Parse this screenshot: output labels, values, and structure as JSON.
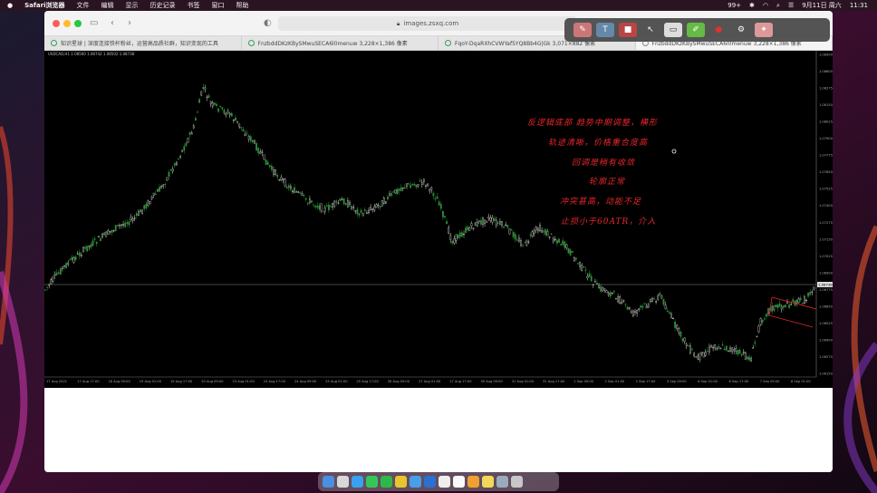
{
  "menubar": {
    "apple": "",
    "items": [
      "Safari浏览器",
      "文件",
      "编辑",
      "显示",
      "历史记录",
      "书签",
      "窗口",
      "帮助"
    ],
    "status": {
      "battery": "99+",
      "date": "9月11日 周六",
      "time": "11:31"
    }
  },
  "browser": {
    "address": "images.zsxq.com",
    "tabs": [
      {
        "title": "知识星球 | 深度连接铁杆粉丝，运营高品质社群，知识变现的工具",
        "active": false
      },
      {
        "title": "FnzbddDKzKBySMwuSECA6l0menuw 3,228×1,386 像素",
        "active": false
      },
      {
        "title": "FqoY-DqaRXhCVWYaf5YQ8Bb4G|Gk 3,071×882 像素",
        "active": false
      },
      {
        "title": "FnzbddDKzKBySMwuSECA6l0menuw 3,228×1,386 像素",
        "active": true
      }
    ]
  },
  "chart": {
    "header": "USDCAD,H1  1.08560 1.08742 1.08502 1.08738",
    "current_price_label": "1.08738",
    "y_ticks": [
      "1.08900",
      "1.08600",
      "1.08275",
      "1.08150",
      "1.08025",
      "1.07900",
      "1.07775",
      "1.07650",
      "1.07525",
      "1.07400",
      "1.07275",
      "1.07150",
      "1.07025",
      "1.06900",
      "1.06775",
      "1.06650",
      "1.06525",
      "1.06400",
      "1.06275",
      "1.06150"
    ],
    "x_ticks": [
      "17 Aug 2021",
      "17 Aug 17:00",
      "18 Aug 09:00",
      "19 Aug 01:00",
      "19 Aug 17:00",
      "20 Aug 09:00",
      "23 Aug 01:00",
      "23 Aug 17:00",
      "24 Aug 09:00",
      "25 Aug 01:00",
      "25 Aug 17:00",
      "26 Aug 09:00",
      "27 Aug 01:00",
      "27 Aug 17:00",
      "30 Aug 09:00",
      "31 Aug 01:00",
      "31 Aug 17:00",
      "1 Sep 09:00",
      "2 Sep 01:00",
      "2 Sep 17:00",
      "3 Sep 09:00",
      "6 Sep 01:00",
      "6 Sep 17:00",
      "7 Sep 09:00",
      "8 Sep 01:00"
    ],
    "colors": {
      "bull": "#d6dcd0",
      "bear": "#2f8f3a",
      "hline": "#8c8c8c",
      "channel": "#e8262b"
    }
  },
  "annotations": [
    "反逻辑底部 趋势中期调整，横形",
    "轨迹清晰，价格重合度高",
    "回调是稍有收敛",
    "轮廓正常",
    "冲突甚高，动能不足",
    "止损小于60ATR，介入"
  ],
  "annotation_toolbar": {
    "tools": [
      "pen-tool",
      "text-tool",
      "shape-tool",
      "select-tool",
      "rect-tool",
      "highlighter-tool",
      "color-tool",
      "settings-tool",
      "eraser-tool"
    ]
  },
  "dock": {
    "apps": [
      "finder",
      "launchpad",
      "safari",
      "messages",
      "wechat",
      "chrome",
      "mail",
      "xcode",
      "photos",
      "notion",
      "pages",
      "notes",
      "preview",
      "trash"
    ]
  }
}
